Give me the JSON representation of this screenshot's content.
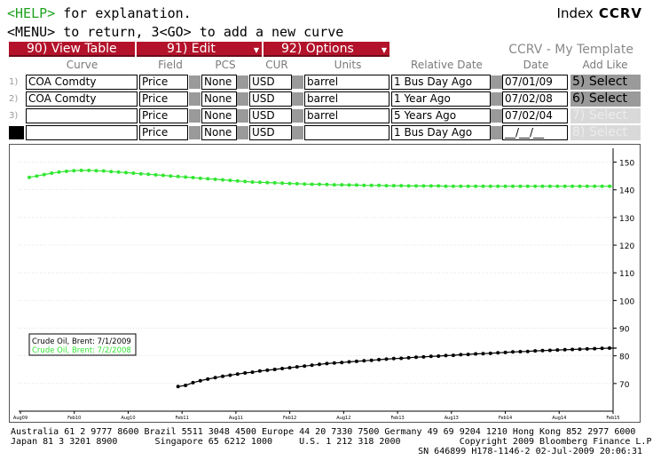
{
  "header": {
    "help_key": "<HELP>",
    "help_text": " for explanation.",
    "menu_line": "<MENU> to return, 3<GO> to add a new curve",
    "index_prefix": "Index",
    "index_code": "CCRV"
  },
  "toolbar": {
    "view_table": "90)  View Table",
    "edit": "91)  Edit",
    "options": "92)  Options"
  },
  "template_title": "CCRV - My Template",
  "columns": [
    "Curve",
    "Field",
    "PCS",
    "CUR",
    "Units",
    "Relative Date",
    "Date",
    "Add Like"
  ],
  "rows": [
    {
      "num": "1)",
      "curve": "COA Comdty",
      "field": "Price",
      "pcs": "None",
      "cur": "USD",
      "units": "barrel",
      "rel": "1 Bus Day Ago",
      "date": "07/01/09",
      "select": "5)  Select"
    },
    {
      "num": "2)",
      "curve": "COA Comdty",
      "field": "Price",
      "pcs": "None",
      "cur": "USD",
      "units": "barrel",
      "rel": "1 Year Ago",
      "date": "07/02/08",
      "select": "6)  Select"
    },
    {
      "num": "3)",
      "curve": "",
      "field": "Price",
      "pcs": "None",
      "cur": "USD",
      "units": "barrel",
      "rel": "5 Years Ago",
      "date": "07/02/04",
      "select": "7)  Select"
    },
    {
      "num": "",
      "curve": "",
      "field": "Price",
      "pcs": "None",
      "cur": "USD",
      "units": "",
      "rel": "1 Bus Day Ago",
      "date": "__/__/__",
      "select": "8)  Select"
    }
  ],
  "chart_data": {
    "type": "line",
    "ylim": [
      60,
      155
    ],
    "yticks": [
      70,
      80,
      90,
      100,
      110,
      120,
      130,
      140,
      150
    ],
    "xticks": [
      "Aug09",
      "Feb10",
      "Aug10",
      "Feb11",
      "Aug11",
      "Feb12",
      "Aug12",
      "Feb13",
      "Aug13",
      "Feb14",
      "Aug14",
      "Feb15"
    ],
    "series": [
      {
        "name": "Crude Oil, Brent: 7/1/2009",
        "color": "#000000",
        "start_index": 20,
        "values": [
          68.9,
          69.3,
          70.3,
          71.0,
          71.6,
          72.1,
          72.6,
          73.0,
          73.4,
          73.8,
          74.1,
          74.5,
          74.8,
          75.1,
          75.4,
          75.7,
          76.0,
          76.3,
          76.6,
          76.9,
          77.2,
          77.4,
          77.6,
          77.8,
          78.0,
          78.2,
          78.4,
          78.6,
          78.8,
          79.0,
          79.1,
          79.3,
          79.5,
          79.6,
          79.8,
          79.9,
          80.1,
          80.2,
          80.4,
          80.5,
          80.7,
          80.8,
          80.9,
          81.1,
          81.2,
          81.4,
          81.5,
          81.6,
          81.8,
          81.9,
          82.0,
          82.1,
          82.2,
          82.3,
          82.4,
          82.5,
          82.6,
          82.7,
          82.8
        ]
      },
      {
        "name": "Crude Oil, Brent: 7/2/2008",
        "color": "#33e633",
        "start_index": 0,
        "values": [
          144.5,
          145.0,
          145.5,
          146.0,
          146.4,
          146.7,
          146.9,
          147.0,
          147.0,
          146.9,
          146.8,
          146.6,
          146.4,
          146.2,
          146.0,
          145.8,
          145.6,
          145.4,
          145.2,
          145.0,
          144.8,
          144.6,
          144.4,
          144.2,
          144.0,
          143.8,
          143.6,
          143.4,
          143.2,
          143.0,
          142.8,
          142.7,
          142.6,
          142.5,
          142.4,
          142.3,
          142.2,
          142.1,
          142.0,
          142.0,
          141.9,
          141.8,
          141.8,
          141.7,
          141.7,
          141.6,
          141.6,
          141.6,
          141.5,
          141.5,
          141.5,
          141.4,
          141.4,
          141.4,
          141.4,
          141.4,
          141.3,
          141.3,
          141.3,
          141.3,
          141.3,
          141.3,
          141.3,
          141.3,
          141.3,
          141.3,
          141.3,
          141.3,
          141.3,
          141.3,
          141.3,
          141.3,
          141.3,
          141.3,
          141.3,
          141.3,
          141.3,
          141.3,
          141.3
        ]
      }
    ],
    "legend_position": "middle-left"
  },
  "footer": {
    "line1": "Australia 61 2 9777 8600 Brazil 5511 3048 4500 Europe 44 20 7330 7500 Germany 49 69 9204 1210 Hong Kong 852 2977 6000",
    "line2": "Japan 81 3 3201 8900       Singapore 65 6212 1000     U.S. 1 212 318 2000           Copyright 2009 Bloomberg Finance L.P.",
    "line3": "SN 646899 H178-1146-2 02-Jul-2009 20:06:31"
  }
}
